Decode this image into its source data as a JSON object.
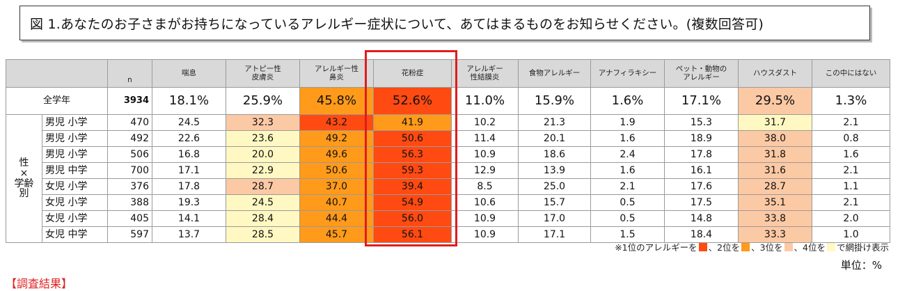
{
  "title": "図 1.あなたのお子さまがお持ちになっているアレルギー症状について、あてはまるものをお知らせください。(複数回答可)",
  "chart_data": {
    "type": "table",
    "n_header": "n",
    "columns": [
      "喘息",
      "アトピー性\n皮膚炎",
      "アレルギー性\n鼻炎",
      "花粉症",
      "アレルギー\n性結膜炎",
      "食物アレルギー",
      "アナフィラキシー",
      "ペット・動物の\nアレルギー",
      "ハウスダスト",
      "この中にはない"
    ],
    "highlighted_column": "花粉症",
    "total": {
      "label": "全学年",
      "n": "3934",
      "values": [
        "18.1%",
        "25.9%",
        "45.8%",
        "52.6%",
        "11.0%",
        "15.9%",
        "1.6%",
        "17.1%",
        "29.5%",
        "1.3%"
      ],
      "ranks": [
        0,
        0,
        2,
        1,
        0,
        0,
        0,
        0,
        3,
        0
      ]
    },
    "group_label": "性\n×\n学齢\n別",
    "rows": [
      {
        "label": "男児 小学",
        "n": "470",
        "values": [
          "24.5",
          "32.3",
          "43.2",
          "41.9",
          "10.2",
          "21.3",
          "1.9",
          "15.3",
          "31.7",
          "2.1"
        ],
        "ranks": [
          0,
          3,
          1,
          2,
          0,
          0,
          0,
          0,
          4,
          0
        ]
      },
      {
        "label": "男児 小学",
        "n": "492",
        "values": [
          "22.6",
          "23.6",
          "49.2",
          "50.6",
          "11.4",
          "20.1",
          "1.6",
          "18.9",
          "38.0",
          "0.8"
        ],
        "ranks": [
          0,
          4,
          2,
          1,
          0,
          0,
          0,
          0,
          3,
          0
        ]
      },
      {
        "label": "男児 小学",
        "n": "506",
        "values": [
          "16.8",
          "20.0",
          "49.6",
          "56.3",
          "10.9",
          "18.6",
          "2.4",
          "17.8",
          "31.8",
          "1.6"
        ],
        "ranks": [
          0,
          4,
          2,
          1,
          0,
          0,
          0,
          0,
          3,
          0
        ]
      },
      {
        "label": "男児 中学",
        "n": "700",
        "values": [
          "17.1",
          "22.9",
          "50.6",
          "59.3",
          "12.9",
          "13.9",
          "1.6",
          "16.1",
          "31.6",
          "2.1"
        ],
        "ranks": [
          0,
          4,
          2,
          1,
          0,
          0,
          0,
          0,
          3,
          0
        ]
      },
      {
        "label": "女児 小学",
        "n": "376",
        "values": [
          "17.8",
          "28.7",
          "37.0",
          "39.4",
          "8.5",
          "25.0",
          "2.1",
          "17.6",
          "28.7",
          "1.1"
        ],
        "ranks": [
          0,
          3,
          2,
          1,
          0,
          0,
          0,
          0,
          3,
          0
        ]
      },
      {
        "label": "女児 小学",
        "n": "388",
        "values": [
          "19.3",
          "24.5",
          "40.7",
          "54.9",
          "10.6",
          "15.7",
          "0.5",
          "17.5",
          "35.1",
          "2.1"
        ],
        "ranks": [
          0,
          4,
          2,
          1,
          0,
          0,
          0,
          0,
          3,
          0
        ]
      },
      {
        "label": "女児 小学",
        "n": "405",
        "values": [
          "14.1",
          "28.4",
          "44.4",
          "56.0",
          "10.9",
          "17.0",
          "0.5",
          "14.8",
          "33.8",
          "2.0"
        ],
        "ranks": [
          0,
          4,
          2,
          1,
          0,
          0,
          0,
          0,
          3,
          0
        ]
      },
      {
        "label": "女児 中学",
        "n": "597",
        "values": [
          "13.7",
          "28.5",
          "45.7",
          "56.1",
          "10.9",
          "17.1",
          "1.5",
          "18.4",
          "33.3",
          "1.0"
        ],
        "ranks": [
          0,
          4,
          2,
          1,
          0,
          0,
          0,
          0,
          3,
          0
        ]
      }
    ],
    "rank_colors": {
      "1": "#ff4a12",
      "2": "#ff9a1a",
      "3": "#fcc9a5",
      "4": "#fff8c2"
    },
    "legend": {
      "prefix": "※1位のアレルギーを",
      "after1": "、2位を",
      "after2": "、3位を",
      "after3": "、4位を",
      "suffix": "で網掛け表示"
    },
    "unit": "単位：%"
  },
  "cutoff_text": "【調査結果】"
}
